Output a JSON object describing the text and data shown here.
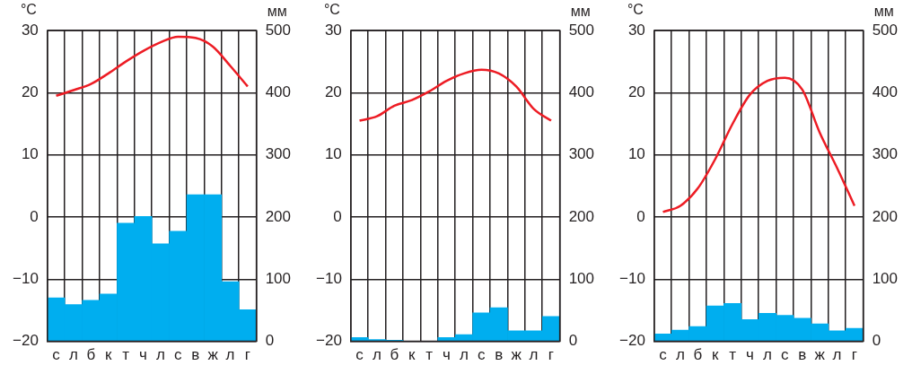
{
  "chart_data": [
    {
      "type": "bar",
      "categories": [
        "с",
        "л",
        "б",
        "к",
        "т",
        "ч",
        "л",
        "с",
        "в",
        "ж",
        "л",
        "г"
      ],
      "ylabel": "°C",
      "y2label": "мм",
      "ylim": [
        -20,
        30
      ],
      "yticks": [
        -20,
        -10,
        0,
        10,
        20,
        30
      ],
      "y2lim": [
        0,
        500
      ],
      "y2ticks": [
        0,
        100,
        200,
        300,
        400,
        500
      ],
      "grid": true,
      "legend": false,
      "series": [
        {
          "type": "line",
          "axis": "y",
          "color": "#ed1c24",
          "values": [
            19.5,
            20.4,
            21.4,
            23.1,
            25,
            26.7,
            28.1,
            29,
            28.8,
            27.4,
            24.3,
            21
          ]
        },
        {
          "axis": "y2",
          "color": "#00aeef",
          "values": [
            70,
            59,
            66,
            76,
            190,
            201,
            157,
            177,
            236,
            236,
            96,
            51
          ]
        }
      ]
    },
    {
      "type": "bar",
      "categories": [
        "с",
        "л",
        "б",
        "к",
        "т",
        "ч",
        "л",
        "с",
        "в",
        "ж",
        "л",
        "г"
      ],
      "ylabel": "°C",
      "y2label": "мм",
      "ylim": [
        -20,
        30
      ],
      "yticks": [
        -20,
        -10,
        0,
        10,
        20,
        30
      ],
      "y2lim": [
        0,
        500
      ],
      "y2ticks": [
        0,
        100,
        200,
        300,
        400,
        500
      ],
      "grid": true,
      "legend": false,
      "series": [
        {
          "type": "line",
          "axis": "y",
          "color": "#ed1c24",
          "values": [
            15.5,
            16.2,
            17.9,
            18.8,
            20.2,
            21.9,
            23.1,
            23.7,
            23.1,
            21,
            17.4,
            15.5
          ]
        },
        {
          "axis": "y2",
          "color": "#00aeef",
          "values": [
            6,
            3,
            2,
            0,
            0,
            6,
            11,
            46,
            54,
            17,
            17,
            40
          ]
        }
      ]
    },
    {
      "type": "bar",
      "categories": [
        "с",
        "л",
        "б",
        "к",
        "т",
        "ч",
        "л",
        "с",
        "в",
        "ж",
        "л",
        "г"
      ],
      "ylabel": "°C",
      "y2label": "мм",
      "ylim": [
        -20,
        30
      ],
      "yticks": [
        -20,
        -10,
        0,
        10,
        20,
        30
      ],
      "y2lim": [
        0,
        500
      ],
      "y2ticks": [
        0,
        100,
        200,
        300,
        400,
        500
      ],
      "grid": true,
      "legend": false,
      "series": [
        {
          "type": "line",
          "axis": "y",
          "color": "#ed1c24",
          "values": [
            0.8,
            1.8,
            4.6,
            9.3,
            15,
            19.7,
            21.9,
            22.4,
            20.5,
            13.6,
            7.9,
            1.8
          ]
        },
        {
          "axis": "y2",
          "color": "#00aeef",
          "values": [
            12,
            18,
            24,
            57,
            61,
            35,
            45,
            42,
            37,
            28,
            17,
            21
          ]
        }
      ]
    }
  ]
}
